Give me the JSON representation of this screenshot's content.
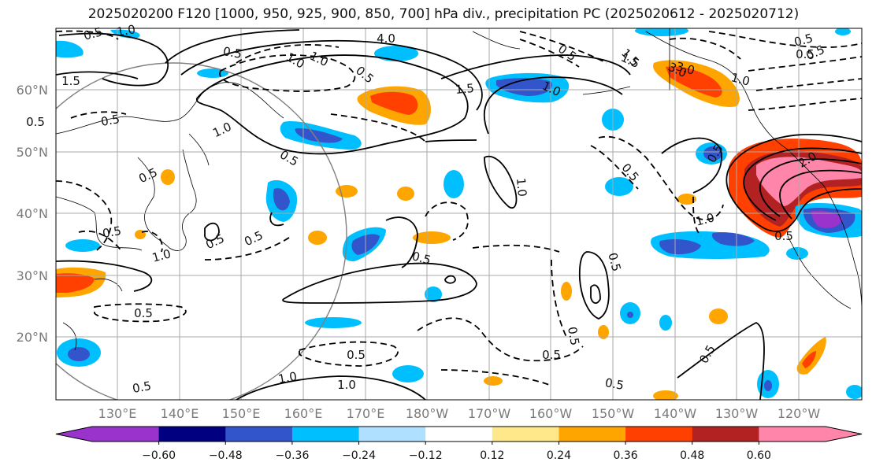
{
  "title": "2025020200 F120 [1000, 950, 925, 900, 850, 700] hPa div., precipitation PC (2025020612 - 2025020712)",
  "map": {
    "lon_ticks": [
      "130°E",
      "140°E",
      "150°E",
      "160°E",
      "170°E",
      "180°W",
      "170°W",
      "160°W",
      "150°W",
      "140°W",
      "130°W",
      "120°W"
    ],
    "lat_ticks": [
      "20°N",
      "30°N",
      "40°N",
      "50°N",
      "60°N"
    ],
    "gridlines": true,
    "colors": {
      "grid": "#a9a9a9",
      "coast": "#000000",
      "range_circle": "#808080"
    }
  },
  "contour_labels": [
    {
      "text": "0.5"
    },
    {
      "text": "1.0"
    },
    {
      "text": "1.5"
    },
    {
      "text": "4.0"
    },
    {
      "text": "3.0"
    },
    {
      "text": "1.5"
    },
    {
      "text": "0.5"
    },
    {
      "text": "1.0"
    },
    {
      "text": "0.5"
    },
    {
      "text": "1.5"
    },
    {
      "text": "1.0"
    },
    {
      "text": "0.5"
    },
    {
      "text": "0.5"
    },
    {
      "text": "1.0"
    },
    {
      "text": "0.5"
    },
    {
      "text": "0.5"
    },
    {
      "text": "0.5"
    },
    {
      "text": "1.0"
    },
    {
      "text": "0.5"
    },
    {
      "text": "0.5"
    },
    {
      "text": "0.5"
    },
    {
      "text": "0.5"
    },
    {
      "text": "0.5"
    },
    {
      "text": "0.5"
    },
    {
      "text": "0.5"
    },
    {
      "text": "1.0"
    },
    {
      "text": "0.5"
    },
    {
      "text": "0.5"
    },
    {
      "text": "3.0"
    },
    {
      "text": "1.0"
    },
    {
      "text": "1.5"
    },
    {
      "text": "0.5"
    },
    {
      "text": "2.0"
    },
    {
      "text": "1.0"
    },
    {
      "text": "0.5"
    },
    {
      "text": "1.0"
    },
    {
      "text": "1.0"
    },
    {
      "text": "0.5"
    },
    {
      "text": "0.5"
    },
    {
      "text": "0.5"
    },
    {
      "text": "0.5"
    },
    {
      "text": "0.5"
    },
    {
      "text": "1.0"
    },
    {
      "text": "0.5"
    },
    {
      "text": "0.5"
    }
  ],
  "colorbar": {
    "tick_labels": [
      "−0.60",
      "−0.48",
      "−0.36",
      "−0.24",
      "−0.12",
      "0.12",
      "0.24",
      "0.36",
      "0.48",
      "0.60"
    ],
    "colors": [
      "#9933cc",
      "#000080",
      "#3355cc",
      "#00bfff",
      "#b0e0ff",
      "#ffffff",
      "#ffe88a",
      "#ffa500",
      "#ff4000",
      "#b22222",
      "#ff85aa"
    ]
  }
}
